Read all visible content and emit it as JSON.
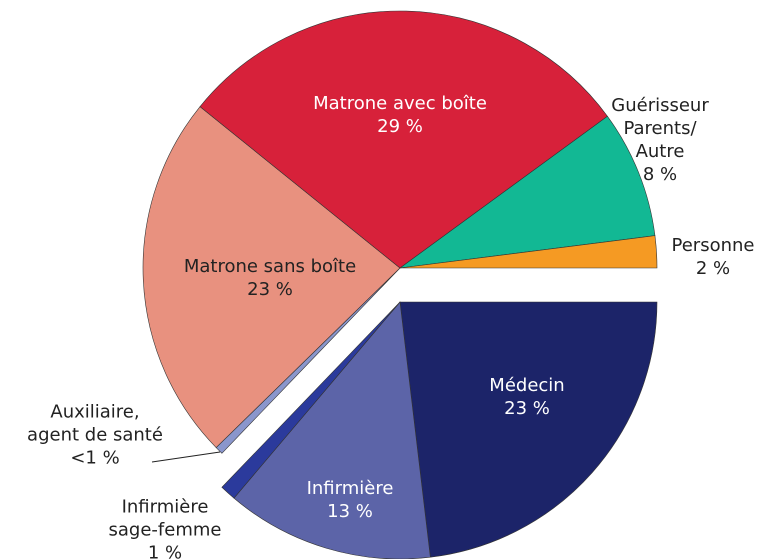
{
  "chart_data": {
    "type": "pie",
    "categories": [
      "Médecin",
      "Infirmière",
      "Infirmière\nsage-femme",
      "Auxiliaire,\nagent de santé",
      "Matrone sans boîte",
      "Matrone avec boîte",
      "Guérisseur\nParents/\nAutre",
      "Personne"
    ],
    "values": [
      23,
      13,
      1,
      0.5,
      23,
      29,
      8,
      2
    ],
    "value_labels": [
      "23 %",
      "13 %",
      "1 %",
      "<1 %",
      "23 %",
      "29 %",
      "8 %",
      "2 %"
    ],
    "colors": [
      "#1c2469",
      "#5c64a8",
      "#2b3a9c",
      "#8a96cc",
      "#e8917f",
      "#d7213a",
      "#12b894",
      "#f59a23"
    ],
    "explode": [
      true,
      true,
      true,
      false,
      false,
      false,
      false,
      false
    ]
  }
}
